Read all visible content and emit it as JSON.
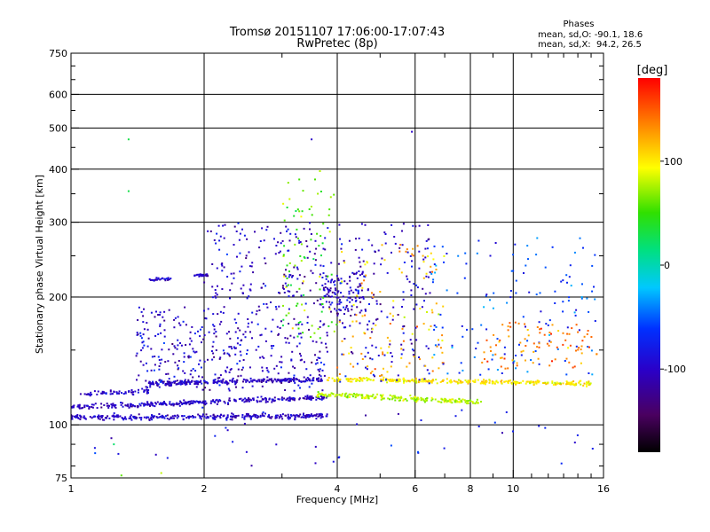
{
  "chart_data": {
    "type": "scatter",
    "title": "Tromsø 20151107 17:06:00-17:07:43",
    "subtitle": "RwPretec (8p)",
    "xlabel": "Frequency [MHz]",
    "ylabel": "Stationary phase Virtual Height [km]",
    "xscale": "log",
    "yscale": "log",
    "xlim": [
      1,
      16
    ],
    "ylim": [
      75,
      750
    ],
    "xticks": [
      1,
      2,
      4,
      6,
      8,
      10,
      16
    ],
    "xtick_labels": [
      "1",
      "2",
      "4",
      "6",
      "8",
      "10",
      "16"
    ],
    "yticks": [
      75,
      100,
      200,
      300,
      400,
      500,
      600,
      750
    ],
    "ytick_labels": [
      "75",
      "100",
      "200",
      "300",
      "400",
      "500",
      "600",
      "750"
    ],
    "xgrid": [
      1,
      2,
      4,
      6,
      8,
      10,
      16
    ],
    "ygrid": [
      100,
      200,
      300,
      400,
      500,
      600,
      750
    ],
    "grid": true,
    "stats": {
      "heading": "Phases",
      "line_o": "mean, sd,O: -90.1, 18.6",
      "line_x": "mean, sd,X:  94.2, 26.5"
    },
    "colorbar": {
      "label": "[deg]",
      "range": [
        -180,
        180
      ],
      "ticks": [
        -100,
        0,
        100
      ],
      "tick_labels": [
        "-100",
        "0",
        "100"
      ]
    },
    "traces": [
      {
        "f_range": [
          1.0,
          3.8
        ],
        "h_start": 104,
        "h_end": 105,
        "phase": -100,
        "n": 320
      },
      {
        "f_range": [
          1.0,
          3.8
        ],
        "h_start": 110,
        "h_end": 116,
        "phase": -100,
        "n": 300
      },
      {
        "f_range": [
          1.05,
          1.5
        ],
        "h_start": 118,
        "h_end": 120,
        "phase": -100,
        "n": 60
      },
      {
        "f_range": [
          1.5,
          3.7
        ],
        "h_start": 125,
        "h_end": 128,
        "phase": -100,
        "n": 260
      },
      {
        "f_range": [
          3.6,
          8.5
        ],
        "h_start": 118,
        "h_end": 113,
        "phase": 80,
        "n": 230
      },
      {
        "f_range": [
          3.8,
          15
        ],
        "h_start": 128,
        "h_end": 125,
        "phase": 100,
        "n": 300
      },
      {
        "f_range": [
          1.5,
          1.7
        ],
        "h_start": 220,
        "h_end": 220,
        "phase": -100,
        "n": 25
      },
      {
        "f_range": [
          1.9,
          2.05
        ],
        "h_start": 225,
        "h_end": 225,
        "phase": -100,
        "n": 25
      }
    ],
    "clouds": [
      {
        "f_range": [
          1.4,
          3.8
        ],
        "h_range": [
          120,
          190
        ],
        "phase": -100,
        "n": 380
      },
      {
        "f_range": [
          2.0,
          3.9
        ],
        "h_range": [
          190,
          300
        ],
        "phase": -100,
        "n": 170
      },
      {
        "f_range": [
          3.0,
          4.0
        ],
        "h_range": [
          160,
          400
        ],
        "phase": 60,
        "n": 90
      },
      {
        "f_range": [
          3.7,
          4.6
        ],
        "h_range": [
          180,
          230
        ],
        "phase": -100,
        "n": 110
      },
      {
        "f_range": [
          4.0,
          6.5
        ],
        "h_range": [
          125,
          300
        ],
        "phase": -100,
        "n": 170
      },
      {
        "f_range": [
          4.0,
          7.0
        ],
        "h_range": [
          125,
          270
        ],
        "phase": 120,
        "n": 120
      },
      {
        "f_range": [
          6.5,
          15.5
        ],
        "h_range": [
          130,
          280
        ],
        "phase": -60,
        "n": 140
      },
      {
        "f_range": [
          8.5,
          15.5
        ],
        "h_range": [
          135,
          175
        ],
        "phase": 140,
        "n": 90
      },
      {
        "f_range": [
          1.0,
          15.5
        ],
        "h_range": [
          80,
          110
        ],
        "phase": -80,
        "n": 45
      }
    ],
    "isolated_points": [
      {
        "f": 1.35,
        "h": 470,
        "phase": 30
      },
      {
        "f": 1.35,
        "h": 355,
        "phase": 30
      },
      {
        "f": 5.9,
        "h": 490,
        "phase": -100
      },
      {
        "f": 3.5,
        "h": 470,
        "phase": -100
      },
      {
        "f": 1.25,
        "h": 90,
        "phase": 20
      },
      {
        "f": 1.6,
        "h": 77,
        "phase": 80
      },
      {
        "f": 1.3,
        "h": 76,
        "phase": 60
      }
    ]
  }
}
